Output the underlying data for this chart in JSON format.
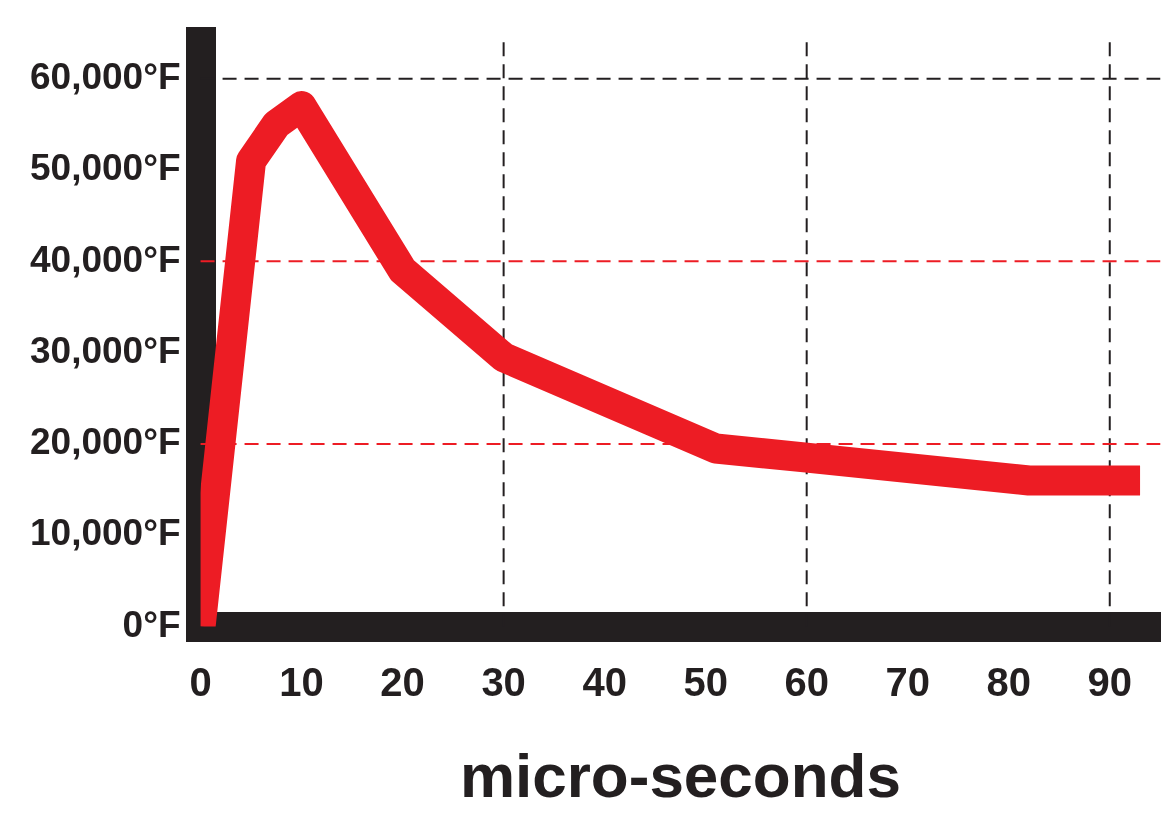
{
  "chart_data": {
    "type": "line",
    "xlabel": "micro-seconds",
    "x": [
      0,
      5,
      7.5,
      10,
      20,
      30,
      51,
      60,
      82,
      93
    ],
    "series": [
      {
        "color": "#ed1c24",
        "values": [
          0,
          51000,
          55000,
          57000,
          39000,
          29500,
          19500,
          18500,
          16000,
          16000
        ]
      }
    ],
    "xlim": [
      0,
      95
    ],
    "ylim": [
      0,
      64000
    ],
    "xticks": [
      0,
      10,
      20,
      30,
      40,
      50,
      60,
      70,
      80,
      90
    ],
    "yticks": [
      {
        "value": 0,
        "label": "0°F"
      },
      {
        "value": 10000,
        "label": "10,000°F"
      },
      {
        "value": 20000,
        "label": "20,000°F"
      },
      {
        "value": 30000,
        "label": "30,000°F"
      },
      {
        "value": 40000,
        "label": "40,000°F"
      },
      {
        "value": 50000,
        "label": "50,000°F"
      },
      {
        "value": 60000,
        "label": "60,000°F"
      }
    ],
    "ref_lines": [
      {
        "axis": "x",
        "value": 30,
        "color": "#231f20",
        "line_style": "dashed"
      },
      {
        "axis": "x",
        "value": 60,
        "color": "#231f20",
        "line_style": "dashed"
      },
      {
        "axis": "x",
        "value": 90,
        "color": "#231f20",
        "line_style": "dashed"
      },
      {
        "axis": "y",
        "value": 60000,
        "color": "#231f20",
        "line_style": "dashed"
      },
      {
        "axis": "y",
        "value": 40000,
        "color": "#ed1c24",
        "line_style": "dashed"
      },
      {
        "axis": "y",
        "value": 20000,
        "color": "#ed1c24",
        "line_style": "dashed"
      }
    ],
    "grid": false,
    "legend": false,
    "marker": "none",
    "line_style": "solid"
  }
}
